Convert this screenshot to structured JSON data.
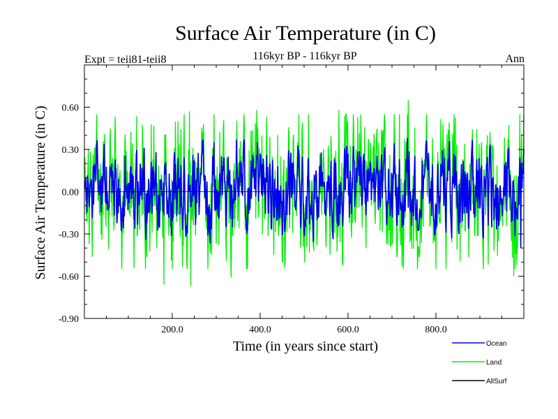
{
  "chart_data": {
    "type": "line",
    "title": "Surface Air Temperature (in C)",
    "subtitle": "116kyr BP - 116kyr BP",
    "top_left": "Expt = teii81-teii8",
    "top_right": "Ann",
    "xlabel": "Time (in years since start)",
    "ylabel": "Surface Air Temperature (in C)",
    "xlim": [
      0,
      1000
    ],
    "ylim": [
      -0.9,
      0.9
    ],
    "xticks": [
      200,
      400,
      600,
      800
    ],
    "xtick_labels": [
      "200.0",
      "400.0",
      "600.0",
      "800.0"
    ],
    "yticks": [
      -0.9,
      -0.6,
      -0.3,
      0.0,
      0.3,
      0.6
    ],
    "ytick_labels": [
      "-0.90",
      "-0.60",
      "-0.30",
      "0.00",
      "0.30",
      "0.60"
    ],
    "grid": false,
    "legend_position": "bottom-right",
    "note": "Annual time series of 1000 years; noise values approximated from the figure (envelope amplitudes, extreme peaks).",
    "series": [
      {
        "name": "Land",
        "color": "#00ee00",
        "envelope": {
          "high": [
            0.55,
            0.45
          ],
          "low": [
            -0.55,
            -0.45
          ]
        },
        "peaks": [
          {
            "x": 238,
            "y": 0.57
          },
          {
            "x": 391,
            "y": 0.58
          },
          {
            "x": 578,
            "y": 0.58
          },
          {
            "x": 736,
            "y": 0.65
          },
          {
            "x": 180,
            "y": -0.66
          },
          {
            "x": 241,
            "y": -0.67
          },
          {
            "x": 333,
            "y": -0.61
          },
          {
            "x": 976,
            "y": -0.6
          }
        ]
      },
      {
        "name": "Ocean",
        "color": "#0000ee",
        "envelope": {
          "high": [
            0.37,
            0.3
          ],
          "low": [
            -0.37,
            -0.3
          ]
        },
        "peaks": [
          {
            "x": 345,
            "y": 0.37
          },
          {
            "x": 734,
            "y": 0.38
          },
          {
            "x": 992,
            "y": -0.4
          }
        ]
      },
      {
        "name": "AllSurf",
        "color": "#000000",
        "envelope": {
          "high": [
            0.0,
            0.0
          ],
          "low": [
            0.0,
            0.0
          ]
        },
        "peaks": []
      }
    ]
  }
}
